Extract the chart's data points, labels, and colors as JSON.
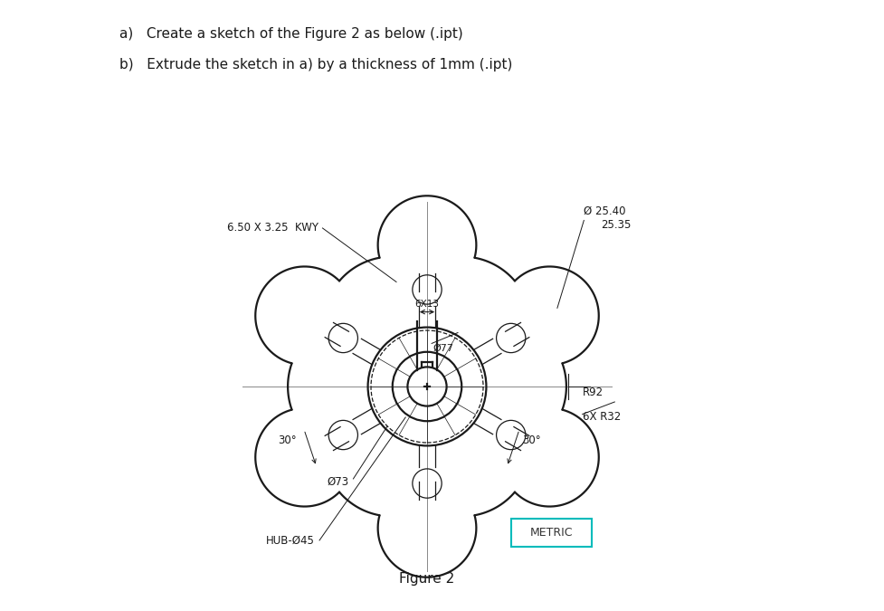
{
  "title_text": "Figure 2",
  "instruction_a": "a)   Create a sketch of the Figure 2 as below (.ipt)",
  "instruction_b": "b)   Extrude the sketch in a) by a thickness of 1mm (.ipt)",
  "bg_color": "#ffffff",
  "line_color": "#1a1a1a",
  "center_color": "#888888",
  "metric_box_color": "#00bbbb",
  "label_kwy": "6.50 X 3.25  KWY",
  "label_dia_outer_1": "Ø 25.40",
  "label_dia_outer_2": "25.35",
  "label_R92": "R92",
  "label_6xR32": "6X R32",
  "label_phi77": "Ø77",
  "label_phi73": "Ø73",
  "label_hub": "HUB-Ø45",
  "label_metric": "METRIC",
  "label_6x13": "6X13",
  "label_30L": "30°",
  "label_30R": "30°"
}
